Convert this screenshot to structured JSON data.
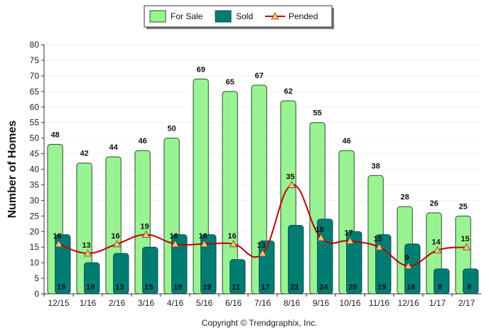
{
  "colors": {
    "for_sale_fill": "#99f393",
    "for_sale_stroke": "#2a4d2a",
    "sold_fill": "#007c73",
    "sold_stroke": "#00514b",
    "pended_line": "#c00000",
    "pended_marker": "#f3c37a",
    "axis": "#333333",
    "grid": "#f2f2f2"
  },
  "legend": {
    "for_sale": "For Sale",
    "sold": "Sold",
    "pended": "Pended"
  },
  "copyright": "Copyright © Trendgraphix, Inc.",
  "chart_data": {
    "type": "bar",
    "ylabel": "Number of Homes",
    "xlabel": "",
    "title": "",
    "ylim": [
      0,
      80
    ],
    "yticks": [
      0,
      5,
      10,
      15,
      20,
      25,
      30,
      35,
      40,
      45,
      50,
      55,
      60,
      65,
      70,
      75,
      80
    ],
    "legend_position": "top-center",
    "grid": false,
    "categories": [
      "12/15",
      "1/16",
      "2/16",
      "3/16",
      "4/16",
      "5/16",
      "6/16",
      "7/16",
      "8/16",
      "9/16",
      "10/16",
      "11/16",
      "12/16",
      "1/17",
      "2/17"
    ],
    "series": [
      {
        "name": "For Sale",
        "type": "bar",
        "values": [
          48,
          42,
          44,
          46,
          50,
          69,
          65,
          67,
          62,
          55,
          46,
          38,
          28,
          26,
          25
        ]
      },
      {
        "name": "Sold",
        "type": "bar",
        "values": [
          19,
          10,
          13,
          15,
          19,
          19,
          11,
          17,
          22,
          24,
          20,
          19,
          16,
          8,
          8
        ]
      },
      {
        "name": "Pended",
        "type": "line",
        "values": [
          16,
          13,
          16,
          19,
          16,
          16,
          16,
          13,
          35,
          18,
          17,
          15,
          9,
          14,
          15
        ]
      }
    ]
  }
}
